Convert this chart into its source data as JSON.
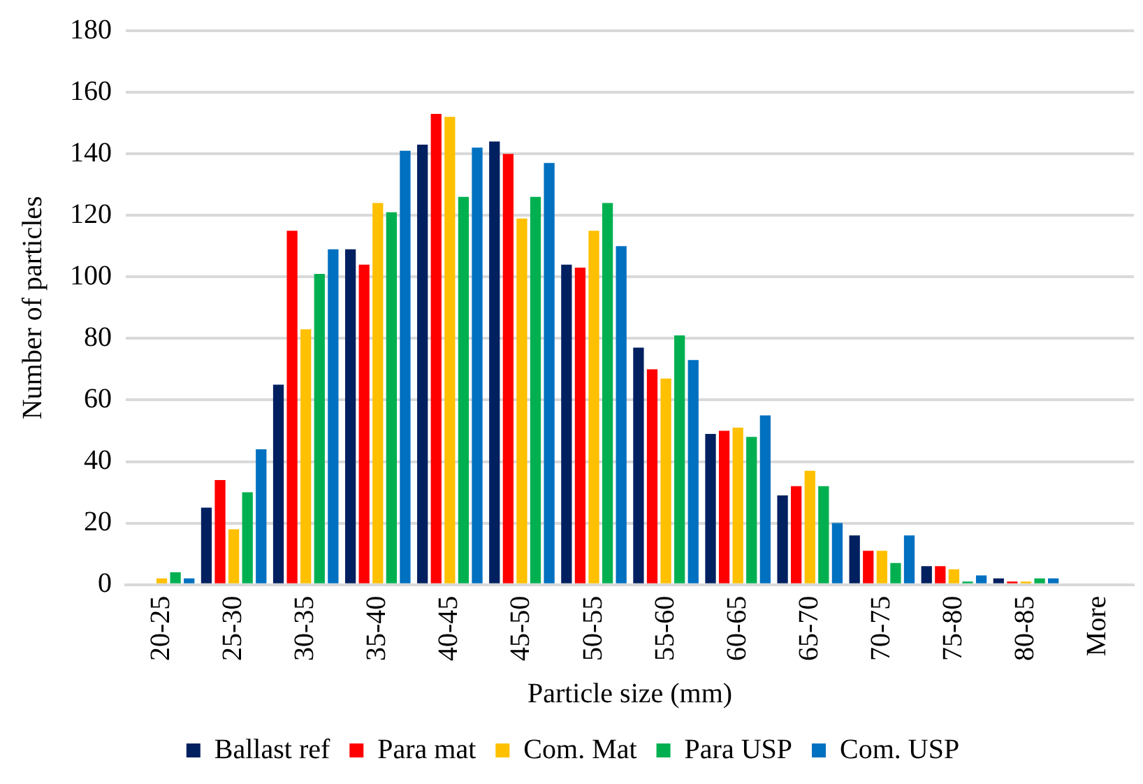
{
  "chart_data": {
    "type": "bar",
    "xlabel": "Particle size (mm)",
    "ylabel": "Number of particles",
    "categories": [
      "20-25",
      "25-30",
      "30-35",
      "35-40",
      "40-45",
      "45-50",
      "50-55",
      "55-60",
      "60-65",
      "65-70",
      "70-75",
      "75-80",
      "80-85",
      "More"
    ],
    "series": [
      {
        "name": "Ballast ref",
        "color": "#002060",
        "values": [
          0,
          25,
          65,
          109,
          143,
          144,
          104,
          77,
          49,
          29,
          16,
          6,
          2,
          0
        ]
      },
      {
        "name": "Para mat",
        "color": "#ff0000",
        "values": [
          0,
          34,
          115,
          104,
          153,
          140,
          103,
          70,
          50,
          32,
          11,
          6,
          1,
          0
        ]
      },
      {
        "name": "Com. Mat",
        "color": "#ffc000",
        "values": [
          2,
          18,
          83,
          124,
          152,
          119,
          115,
          67,
          51,
          37,
          11,
          5,
          1,
          0
        ]
      },
      {
        "name": "Para USP",
        "color": "#00b050",
        "values": [
          4,
          30,
          101,
          121,
          126,
          126,
          124,
          81,
          48,
          32,
          7,
          1,
          2,
          0
        ]
      },
      {
        "name": "Com. USP",
        "color": "#0070c0",
        "values": [
          2,
          44,
          109,
          141,
          142,
          137,
          110,
          73,
          55,
          20,
          16,
          3,
          2,
          0
        ]
      }
    ],
    "ylim": [
      0,
      180
    ],
    "yticks": [
      0,
      20,
      40,
      60,
      80,
      100,
      120,
      140,
      160,
      180
    ],
    "grid": "y",
    "legend": "bottom"
  }
}
